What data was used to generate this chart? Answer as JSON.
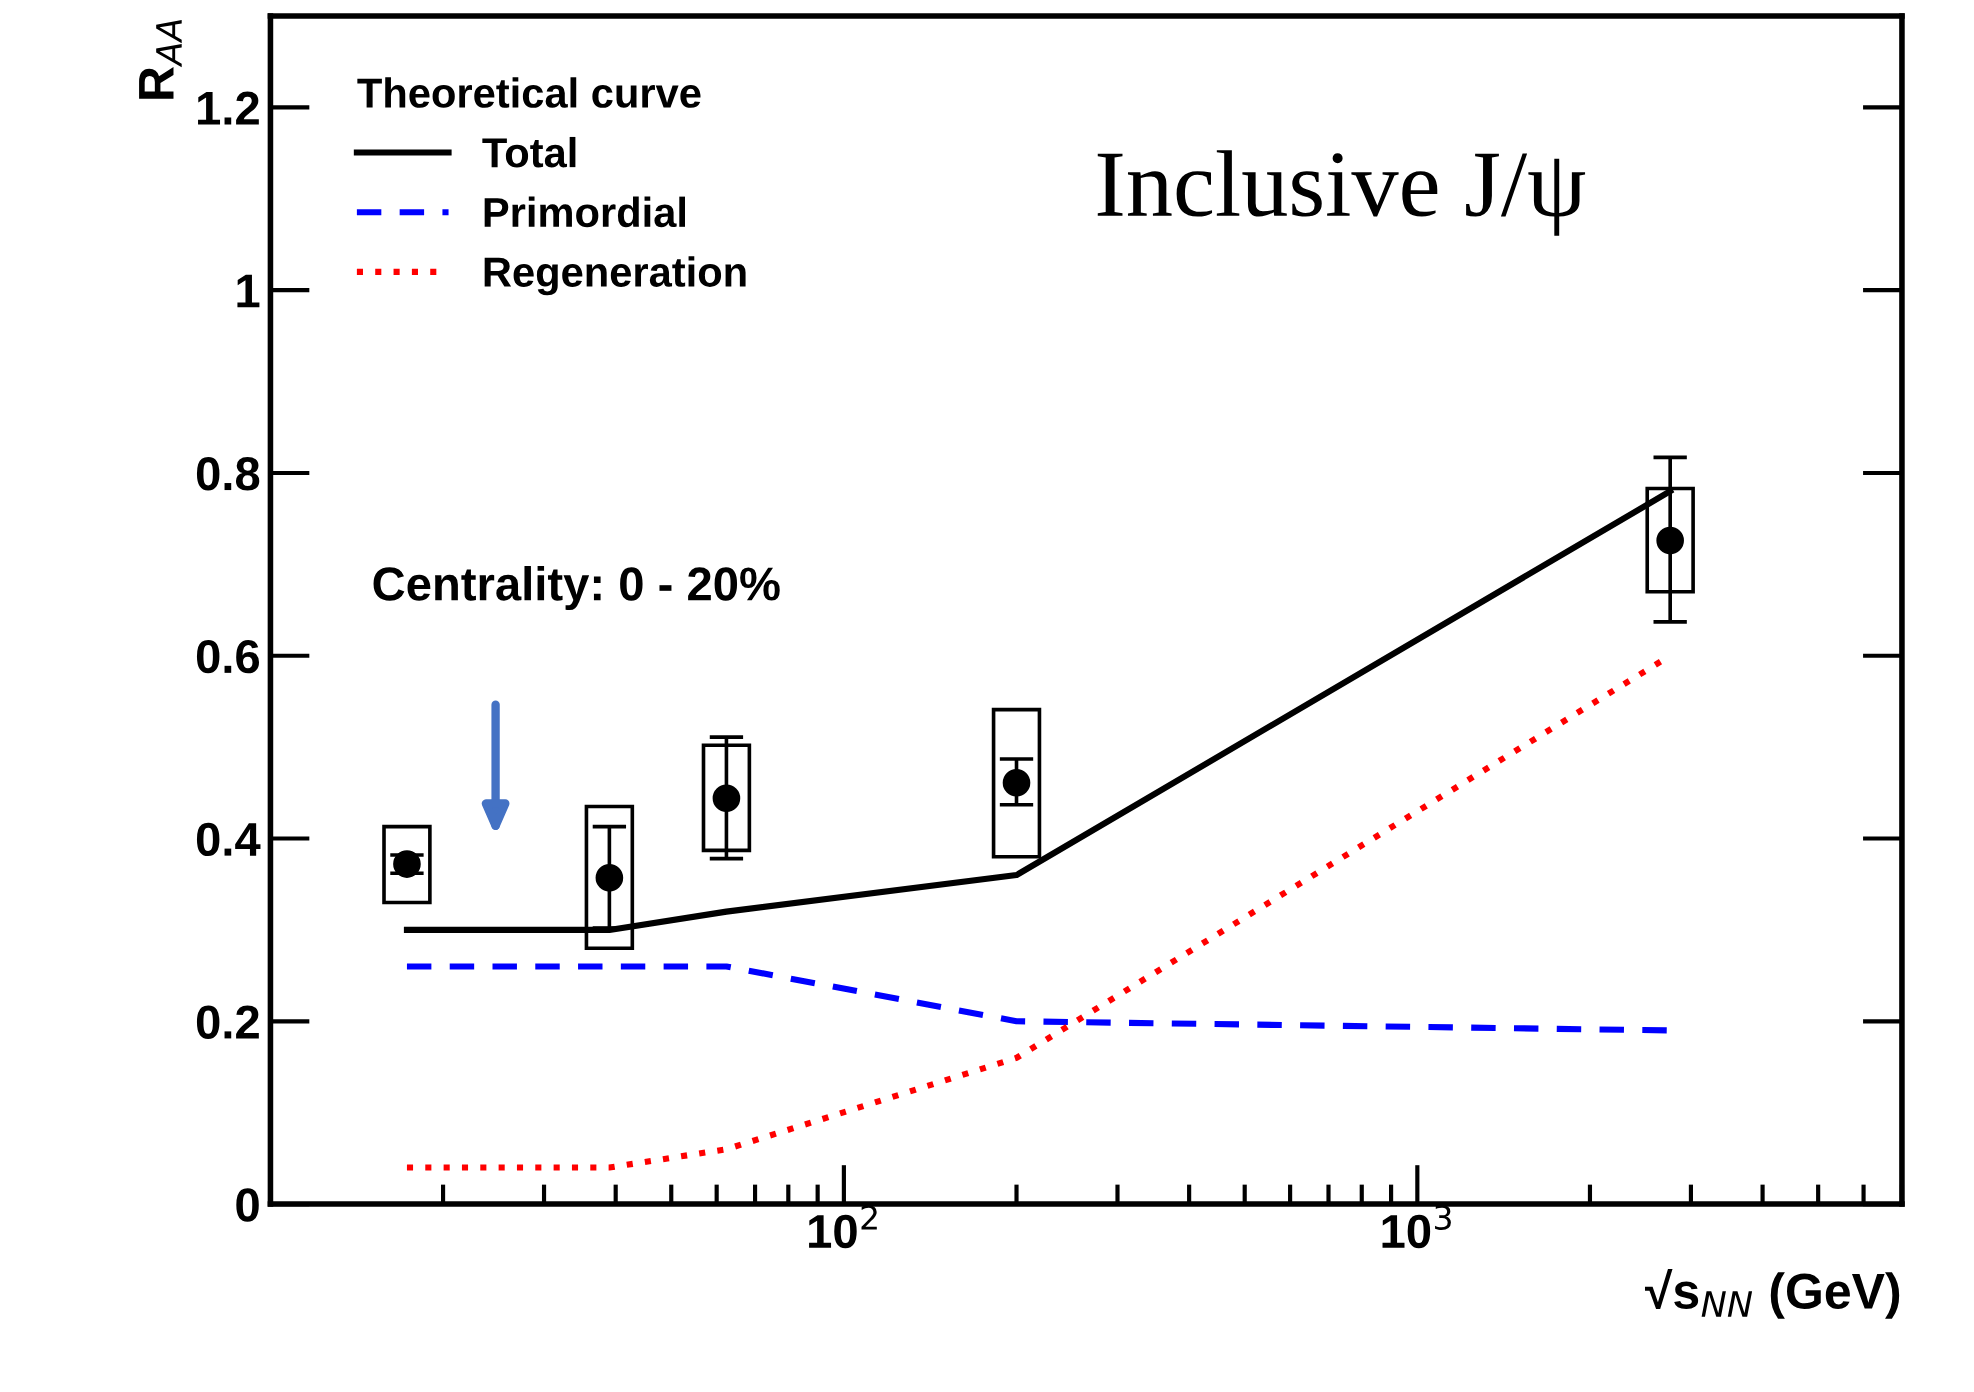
{
  "chart_data": {
    "type": "scatter",
    "xlabel": "√s$_{NN}$ (GeV)",
    "ylabel": "R$_{AA}$",
    "log": "x",
    "xlim": [
      10,
      7000
    ],
    "xticks": [
      {
        "value": 100,
        "label": "10$^{2}$"
      },
      {
        "value": 1000,
        "label": "10$^{3}$"
      }
    ],
    "ylim": [
      0,
      1.3
    ],
    "yticks": [
      0,
      0.2,
      0.4,
      0.6,
      0.8,
      1,
      1.2
    ],
    "legend": "top left",
    "legend_title": "Theoretical curve",
    "grid": false,
    "annotations": [
      "Inclusive J/ψ",
      "Centrality: 0 - 20%"
    ],
    "series": [
      {
        "type": "line",
        "name": "Total",
        "color": "#000000",
        "line_style": "solid",
        "x": [
          17.3,
          39,
          62.4,
          200,
          2760
        ],
        "values": [
          0.3,
          0.3,
          0.32,
          0.36,
          0.78
        ]
      },
      {
        "type": "line",
        "name": "Primordial",
        "color": "#0000ff",
        "line_style": "dashed",
        "x": [
          17.3,
          39,
          62.4,
          200,
          2760
        ],
        "values": [
          0.26,
          0.26,
          0.26,
          0.2,
          0.19
        ]
      },
      {
        "type": "line",
        "name": "Regeneration",
        "color": "#ff0000",
        "line_style": "dotted",
        "x": [
          17.3,
          39,
          62.4,
          200,
          2760
        ],
        "values": [
          0.04,
          0.04,
          0.06,
          0.16,
          0.6
        ]
      },
      {
        "type": "bar",
        "color": "#000000",
        "x": [
          17.3,
          39,
          62.4,
          200,
          2760
        ],
        "base": [
          0.33,
          0.28,
          0.387,
          0.38,
          0.67
        ],
        "values": [
          0.083,
          0.155,
          0.115,
          0.161,
          0.113
        ]
      },
      {
        "color": "#000000",
        "marker": "circle",
        "x": [
          17.3,
          39,
          62.4,
          200,
          2760
        ],
        "values": [
          0.372,
          0.357,
          0.444,
          0.461,
          0.726
        ],
        "errors": [
          [
            0.362,
            0.382
          ],
          [
            0.302,
            0.413
          ],
          [
            0.378,
            0.511
          ],
          [
            0.437,
            0.487
          ],
          [
            0.637,
            0.817
          ]
        ]
      }
    ]
  }
}
